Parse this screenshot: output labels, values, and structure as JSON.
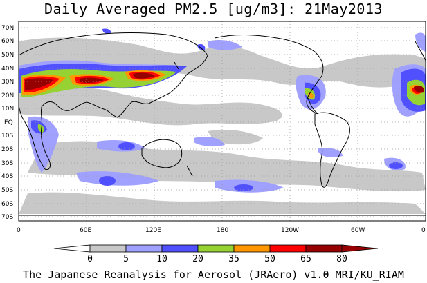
{
  "title": "Daily Averaged PM2.5 [ug/m3]: 21May2013",
  "footer": "The Japanese Reanalysis for Aerosol (JRAero) v1.0 MRI/KU_RIAM",
  "lat_labels": [
    "70N",
    "60N",
    "50N",
    "40N",
    "30N",
    "20N",
    "10N",
    "EQ",
    "10S",
    "20S",
    "30S",
    "40S",
    "50S",
    "60S",
    "70S"
  ],
  "lon_labels": [
    "0",
    "60E",
    "120E",
    "180",
    "120W",
    "60W",
    "0"
  ],
  "colorbar": {
    "levels": [
      "0",
      "5",
      "10",
      "20",
      "35",
      "50",
      "65",
      "80"
    ],
    "colors": [
      "#ffffff",
      "#c8c8c8",
      "#a0a0ff",
      "#5050ff",
      "#96d232",
      "#ff9600",
      "#ff0000",
      "#960000"
    ]
  },
  "colors": {
    "land_outline": "#000000",
    "grid": "#9a9a9a"
  }
}
